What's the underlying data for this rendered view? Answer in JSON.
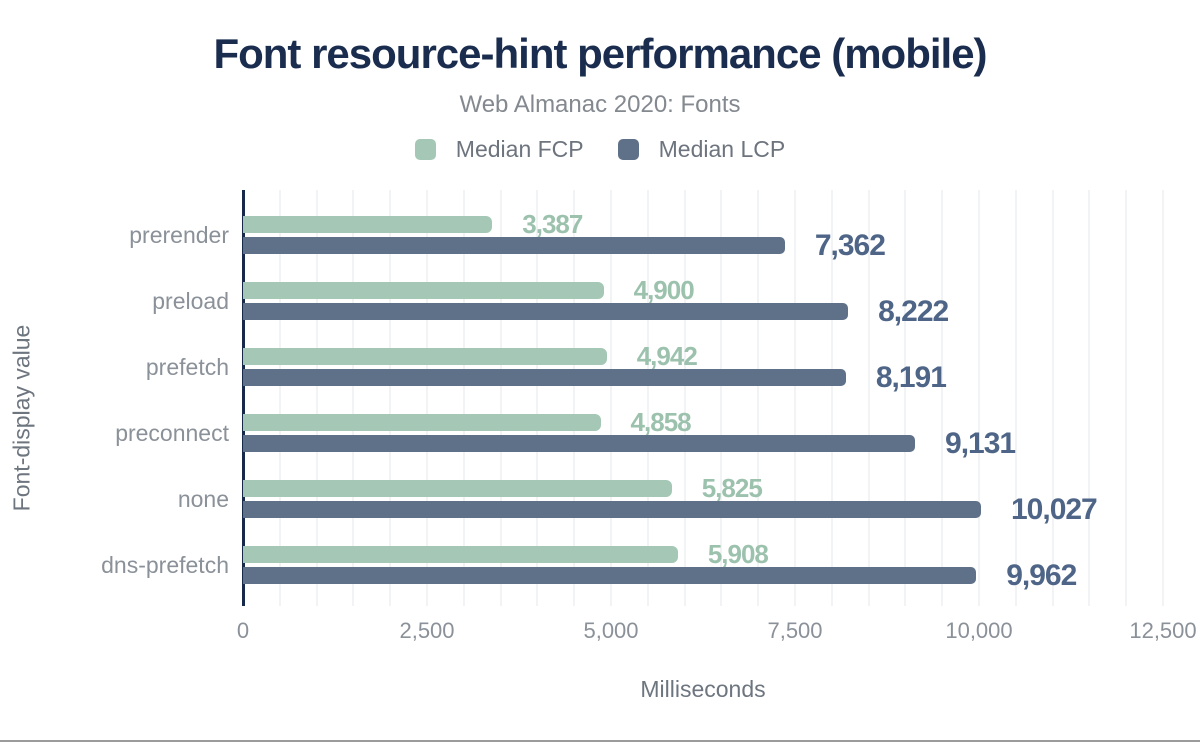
{
  "chart_data": {
    "type": "bar",
    "orientation": "horizontal",
    "title": "Font resource-hint performance (mobile)",
    "subtitle": "Web Almanac 2020: Fonts",
    "xlabel": "Milliseconds",
    "ylabel": "Font-display value",
    "xlim": [
      0,
      12500
    ],
    "gridline_step": 500,
    "grid": "vertical-minor-lines",
    "legend_position": "top-center",
    "x_ticks": [
      0,
      2500,
      5000,
      7500,
      10000,
      12500
    ],
    "x_tick_labels": [
      "0",
      "2,500",
      "5,000",
      "7,500",
      "10,000",
      "12,500"
    ],
    "categories": [
      "prerender",
      "preload",
      "prefetch",
      "preconnect",
      "none",
      "dns-prefetch"
    ],
    "series": [
      {
        "name": "Median FCP",
        "color": "#a4c8b5",
        "label_color": "#9cc2ae",
        "values": [
          3387,
          4900,
          4942,
          4858,
          5825,
          5908
        ],
        "value_labels": [
          "3,387",
          "4,900",
          "4,942",
          "4,858",
          "5,825",
          "5,908"
        ]
      },
      {
        "name": "Median LCP",
        "color": "#5f7089",
        "label_color": "#4e6587",
        "values": [
          7362,
          8222,
          8191,
          9131,
          10027,
          9962
        ],
        "value_labels": [
          "7,362",
          "8,222",
          "8,191",
          "9,131",
          "10,027",
          "9,962"
        ]
      }
    ],
    "colors": {
      "title": "#1b2d4f",
      "subtitle": "#83898f",
      "axis_line": "#16294b",
      "gridline": "#f1f3f4",
      "tick_label": "#8b9199",
      "axis_title": "#6d757f",
      "bottom_border": "#9b9b9b"
    }
  }
}
